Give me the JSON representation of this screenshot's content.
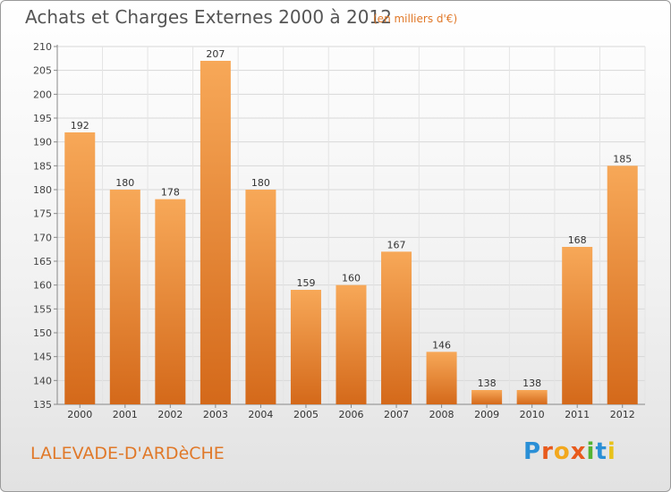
{
  "header": {
    "title": "Achats et Charges Externes 2000 à 2012",
    "unit": "(en milliers d'€)"
  },
  "footer": {
    "place": "LALEVADE-D'ARDèCHE",
    "logo": "Proxiti"
  },
  "colors": {
    "bar_light": "#f7a858",
    "bar_dark": "#d4691a",
    "title": "#555555",
    "accent": "#e07828"
  },
  "chart_data": {
    "type": "bar",
    "categories": [
      "2000",
      "2001",
      "2002",
      "2003",
      "2004",
      "2005",
      "2006",
      "2007",
      "2008",
      "2009",
      "2010",
      "2011",
      "2012"
    ],
    "values": [
      192,
      180,
      178,
      207,
      180,
      159,
      160,
      167,
      146,
      138,
      138,
      168,
      185
    ],
    "ylim": [
      135,
      210
    ],
    "yticks": [
      135,
      140,
      145,
      150,
      155,
      160,
      165,
      170,
      175,
      180,
      185,
      190,
      195,
      200,
      205,
      210
    ],
    "grid": true
  }
}
